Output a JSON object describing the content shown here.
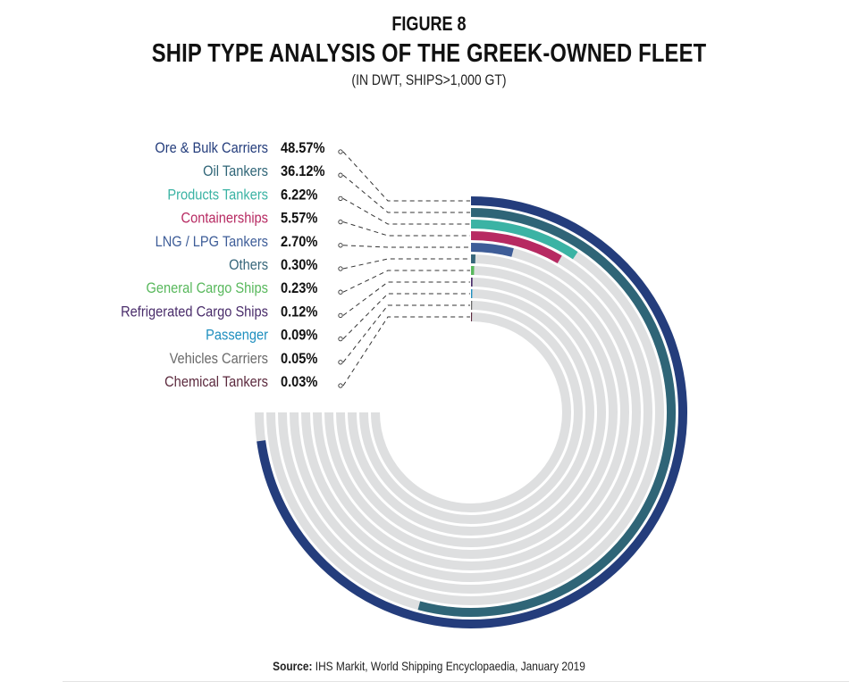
{
  "header": {
    "figure": "FIGURE 8",
    "title": "SHIP TYPE ANALYSIS OF THE GREEK-OWNED FLEET",
    "subtitle": "(IN DWT, SHIPS>1,000 GT)"
  },
  "source": {
    "label": "Source:",
    "text": "IHS Markit, World Shipping Encyclopaedia, January 2019"
  },
  "chart_data": {
    "type": "radial-bar",
    "unit": "%",
    "track_color": "#dedfe0",
    "series": [
      {
        "name": "Ore & Bulk Carriers",
        "label": "48.57%",
        "value": 48.57,
        "color": "#243d7c"
      },
      {
        "name": "Oil Tankers",
        "label": "36.12%",
        "value": 36.12,
        "color": "#2f6577"
      },
      {
        "name": "Products Tankers",
        "label": "6.22%",
        "value": 6.22,
        "color": "#3bb3a4"
      },
      {
        "name": "Containerships",
        "label": "5.57%",
        "value": 5.57,
        "color": "#b72a62"
      },
      {
        "name": "LNG / LPG Tankers",
        "label": "2.70%",
        "value": 2.7,
        "color": "#3e5d98"
      },
      {
        "name": "Others",
        "label": "0.30%",
        "value": 0.3,
        "color": "#36667a"
      },
      {
        "name": "General Cargo Ships",
        "label": "0.23%",
        "value": 0.23,
        "color": "#58b85c"
      },
      {
        "name": "Refrigerated Cargo Ships",
        "label": "0.12%",
        "value": 0.12,
        "color": "#4a2d6b"
      },
      {
        "name": "Passenger",
        "label": "0.09%",
        "value": 0.09,
        "color": "#1f8fbf"
      },
      {
        "name": "Vehicles Carriers",
        "label": "0.05%",
        "value": 0.05,
        "color": "#6a6a6a"
      },
      {
        "name": "Chemical Tankers",
        "label": "0.03%",
        "value": 0.03,
        "color": "#5c2a3e"
      }
    ]
  }
}
